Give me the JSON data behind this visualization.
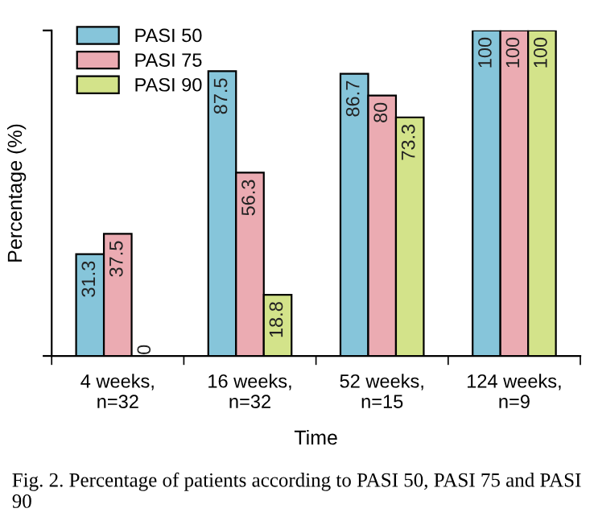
{
  "chart_data": {
    "type": "bar",
    "xlabel": "Time",
    "ylabel": "Percentage (%)",
    "categories": [
      "4 weeks,\nn=32",
      "16 weeks,\nn=32",
      "52 weeks,\nn=15",
      "124 weeks,\nn=9"
    ],
    "series": [
      {
        "name": "PASI 50",
        "color": "#86c5da",
        "values": [
          31.3,
          87.5,
          86.7,
          100
        ]
      },
      {
        "name": "PASI 75",
        "color": "#ebabb2",
        "values": [
          37.5,
          56.3,
          80,
          100
        ]
      },
      {
        "name": "PASI 90",
        "color": "#d3e38a",
        "values": [
          0,
          18.8,
          73.3,
          100
        ]
      }
    ],
    "ylim": [
      0,
      100
    ],
    "yticks": [
      {
        "value": 0,
        "label": null
      },
      {
        "value": 100,
        "label": null
      }
    ],
    "data_labels": true,
    "legend": "top left",
    "grid": false,
    "annotations": [
      "Fig. 2. Percentage of patients according to PASI 50, PASI 75 and PASI 90"
    ]
  }
}
